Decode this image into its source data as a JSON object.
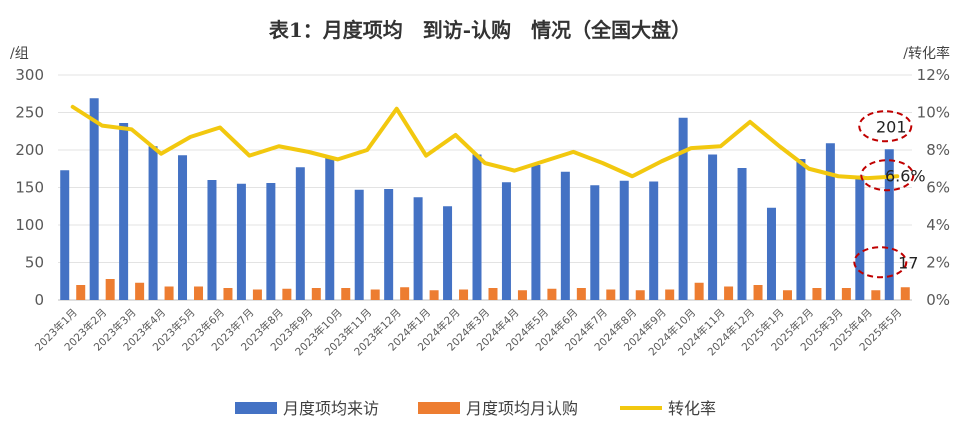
{
  "chart_data": {
    "type": "bar",
    "title": "表1：月度项均　到访-认购　情况（全国大盘）",
    "ylabel_left": "/组",
    "ylabel_right": "/转化率",
    "ylim_left": [
      0,
      300
    ],
    "yticks_left": [
      "0",
      "50",
      "100",
      "150",
      "200",
      "250",
      "300"
    ],
    "ylim_right": [
      0,
      12
    ],
    "yticks_right": [
      "0%",
      "2%",
      "4%",
      "6%",
      "8%",
      "10%",
      "12%"
    ],
    "categories": [
      "2023年1月",
      "2023年2月",
      "2023年3月",
      "2023年4月",
      "2023年5月",
      "2023年6月",
      "2023年7月",
      "2023年8月",
      "2023年9月",
      "2023年10月",
      "2023年11月",
      "2023年12月",
      "2024年1月",
      "2024年2月",
      "2024年3月",
      "2024年4月",
      "2024年5月",
      "2024年6月",
      "2024年7月",
      "2024年8月",
      "2024年9月",
      "2024年10月",
      "2024年11月",
      "2024年12月",
      "2025年1月",
      "2025年2月",
      "2025年3月",
      "2025年4月",
      "2025年5月"
    ],
    "series": [
      {
        "name": "月度项均来访",
        "type": "bar",
        "axis": "left",
        "color": "#4472C4",
        "values": [
          173,
          269,
          236,
          205,
          193,
          160,
          155,
          156,
          177,
          190,
          147,
          148,
          137,
          125,
          194,
          157,
          180,
          171,
          153,
          159,
          158,
          243,
          194,
          176,
          123,
          188,
          209,
          166,
          201
        ]
      },
      {
        "name": "月度项均月认购",
        "type": "bar",
        "axis": "left",
        "color": "#ED7D31",
        "values": [
          20,
          28,
          23,
          18,
          18,
          16,
          14,
          15,
          16,
          16,
          14,
          17,
          13,
          14,
          16,
          13,
          15,
          16,
          14,
          13,
          14,
          23,
          18,
          20,
          13,
          16,
          16,
          13,
          17
        ]
      },
      {
        "name": "转化率",
        "type": "line",
        "axis": "right",
        "color": "#F2C80F",
        "values": [
          10.3,
          9.3,
          9.1,
          7.8,
          8.7,
          9.2,
          7.7,
          8.2,
          7.9,
          7.5,
          8.0,
          10.2,
          7.7,
          8.8,
          7.3,
          6.9,
          7.4,
          7.9,
          7.3,
          6.6,
          7.4,
          8.1,
          8.2,
          9.5,
          8.2,
          7.0,
          6.6,
          6.5,
          6.6
        ]
      }
    ],
    "annotations": [
      {
        "text": "201",
        "target": "2025年5月 月度项均来访"
      },
      {
        "text": "6.6%",
        "target": "2025年5月 转化率"
      },
      {
        "text": "17",
        "target": "2025年5月 月度项均月认购"
      }
    ]
  }
}
